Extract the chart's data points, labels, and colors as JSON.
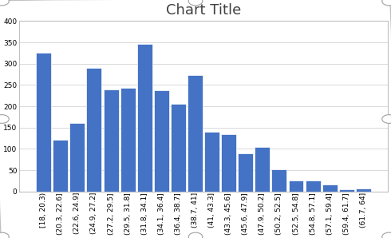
{
  "title": "Chart Title",
  "bar_color": "#4472C4",
  "edge_color": "#ffffff",
  "plot_bg_color": "#ffffff",
  "outer_bg": "#ffffff",
  "categories": [
    "[18, 20.3)",
    "(20.3, 22.6]",
    "(22.6, 24.9]",
    "(24.9, 27.2]",
    "(27.2, 29.5]",
    "(29.5, 31.8]",
    "(31.8, 34.1]",
    "(34.1, 36.4]",
    "(36.4, 38.7]",
    "(38.7, 41]",
    "(41, 43.3]",
    "(43.3, 45.6]",
    "(45.6, 47.9]",
    "(47.9, 50.2]",
    "(50.2, 52.5]",
    "(52.5, 54.8]",
    "(54.8, 57.1]",
    "(57.1, 59.4]",
    "(59.4, 61.7]",
    "(61.7, 64]"
  ],
  "values": [
    325,
    122,
    160,
    290,
    240,
    244,
    347,
    238,
    205,
    273,
    140,
    135,
    90,
    105,
    52,
    25,
    25,
    16,
    5,
    7
  ],
  "ylim": [
    0,
    400
  ],
  "yticks": [
    0,
    50,
    100,
    150,
    200,
    250,
    300,
    350,
    400
  ],
  "grid_color": "#d9d9d9",
  "title_fontsize": 13,
  "tick_fontsize": 6.5,
  "title_color": "#404040",
  "border_color": "#c0c0c0",
  "handle_color": "#a0a0a0"
}
